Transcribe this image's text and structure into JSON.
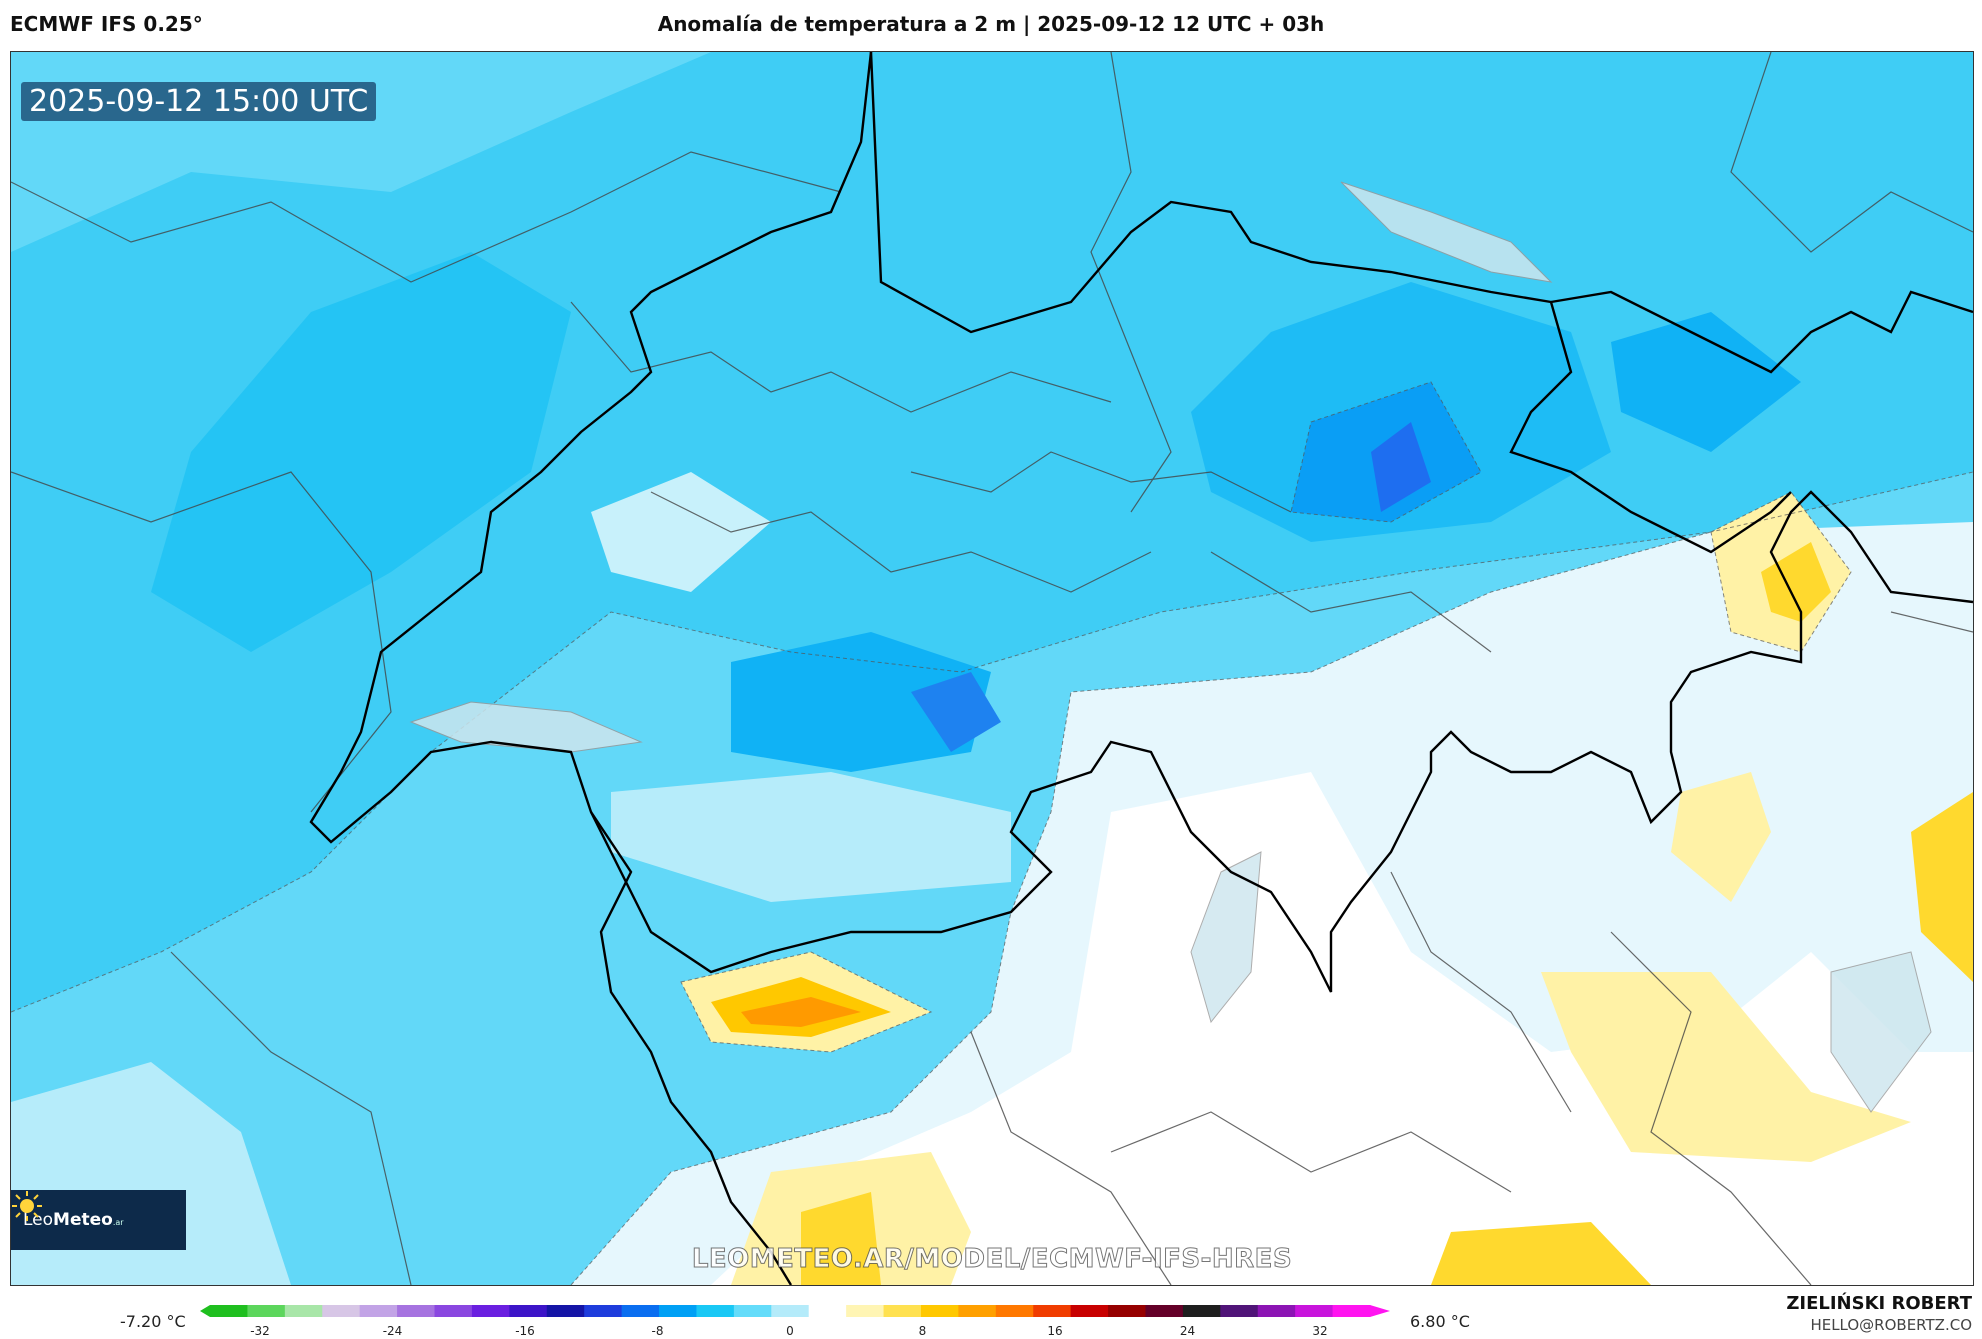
{
  "header": {
    "model": "ECMWF IFS 0.25°",
    "title": "Anomalía de temperatura a 2 m | 2025-09-12 12 UTC + 03h"
  },
  "map": {
    "timestamp": "2025-09-12 15:00 UTC",
    "watermark": "LEOMETEO.AR/MODEL/ECMWF-IFS-HRES",
    "logo_text_a": "Leo",
    "logo_text_b": "Meteo",
    "logo_sup": ".ar"
  },
  "legend": {
    "min_label": "-7.20 °C",
    "max_label": "6.80 °C",
    "ticks": [
      "-32",
      "-24",
      "-16",
      "-8",
      "0",
      "8",
      "16",
      "24",
      "32"
    ],
    "colors": [
      "#1fbf1f",
      "#5cd65c",
      "#a8e6a8",
      "#d7c6e6",
      "#c2a3e6",
      "#a673e0",
      "#8a47e0",
      "#6a1fe0",
      "#3c14c8",
      "#1414a6",
      "#1e3cdc",
      "#0a6ef0",
      "#00a0f5",
      "#19c8f5",
      "#64dcfa",
      "#b4ebfa",
      "#ffffff",
      "#fff5b4",
      "#ffe150",
      "#ffc800",
      "#ffa000",
      "#ff7800",
      "#f03c00",
      "#c80000",
      "#960000",
      "#640028",
      "#1e1e1e",
      "#501478",
      "#8c14b4",
      "#c814dc",
      "#ff14f0"
    ]
  },
  "footer": {
    "author": "ZIELIŃSKI ROBERT",
    "email": "HELLO@ROBERTZ.CO"
  }
}
